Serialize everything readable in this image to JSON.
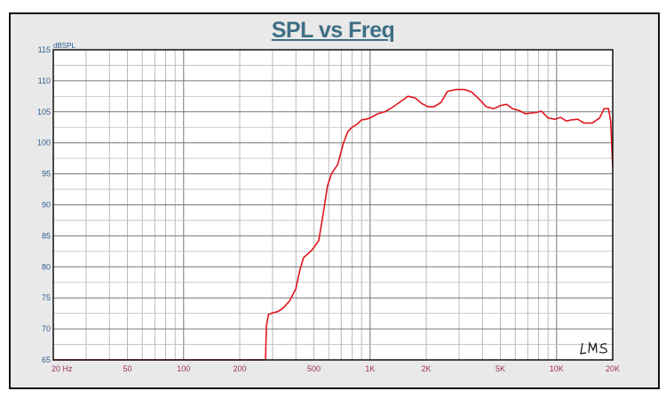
{
  "chart_data": {
    "type": "line",
    "title": "SPL vs Freq",
    "ylabel": "dBSPL",
    "xlabel": "",
    "xscale": "log",
    "xlim": [
      20,
      20000
    ],
    "ylim": [
      65,
      115
    ],
    "grid": true,
    "yticks": [
      65,
      70,
      75,
      80,
      85,
      90,
      95,
      100,
      105,
      110,
      115
    ],
    "xticks": [
      {
        "value": 20,
        "label": "20  Hz"
      },
      {
        "value": 50,
        "label": "50"
      },
      {
        "value": 100,
        "label": "100"
      },
      {
        "value": 200,
        "label": "200"
      },
      {
        "value": 500,
        "label": "500"
      },
      {
        "value": 1000,
        "label": "1K"
      },
      {
        "value": 2000,
        "label": "2K"
      },
      {
        "value": 5000,
        "label": "5K"
      },
      {
        "value": 10000,
        "label": "10K"
      },
      {
        "value": 20000,
        "label": "20K"
      }
    ],
    "series": [
      {
        "name": "SPL",
        "color": "#e0151b",
        "x": [
          20,
          100,
          275,
          278,
          285,
          300,
          320,
          340,
          370,
          400,
          420,
          440,
          460,
          490,
          530,
          560,
          590,
          620,
          670,
          720,
          760,
          800,
          850,
          900,
          950,
          1000,
          1100,
          1200,
          1300,
          1450,
          1600,
          1750,
          1900,
          2050,
          2200,
          2400,
          2600,
          2900,
          3200,
          3500,
          3800,
          4200,
          4600,
          5000,
          5400,
          5800,
          6300,
          6800,
          7300,
          7800,
          8300,
          9000,
          9800,
          10500,
          11300,
          12000,
          13000,
          14000,
          15500,
          17000,
          18000,
          19000,
          19500,
          20000
        ],
        "y": [
          65,
          65,
          65,
          70.5,
          72.3,
          72.6,
          72.8,
          73.3,
          74.5,
          76.5,
          79.5,
          81.5,
          82,
          82.8,
          84.2,
          88.5,
          93,
          95,
          96.5,
          100,
          101.8,
          102.5,
          103,
          103.7,
          103.8,
          104,
          104.7,
          105,
          105.6,
          106.6,
          107.5,
          107.2,
          106.3,
          105.8,
          105.8,
          106.5,
          108.3,
          108.6,
          108.6,
          108.2,
          107.2,
          105.8,
          105.5,
          106,
          106.2,
          105.5,
          105.2,
          104.7,
          104.8,
          104.9,
          105.1,
          104,
          103.8,
          104.1,
          103.5,
          103.7,
          103.8,
          103.2,
          103.2,
          104,
          105.5,
          105.5,
          103.5,
          96
        ]
      }
    ],
    "watermark": "LMS"
  }
}
